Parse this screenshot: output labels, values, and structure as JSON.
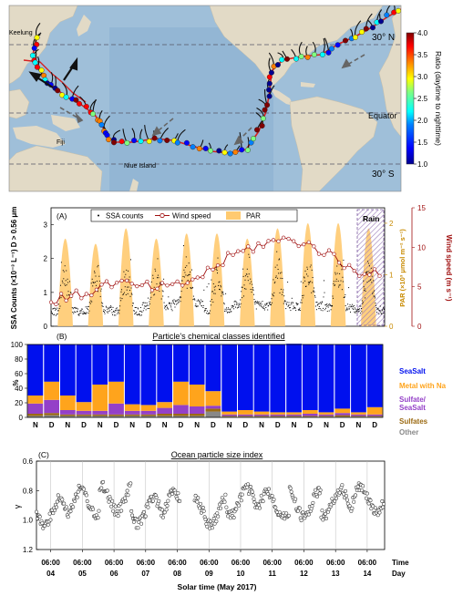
{
  "map": {
    "labels": {
      "keelung": "Keelung",
      "fiji": "Fiji",
      "niue": "Niue Island",
      "equator": "Equator",
      "lat_n": "30° N",
      "lat_s": "30° S"
    },
    "colorbar": {
      "title": "Ratio (daytime to nighttime)",
      "ticks": [
        "4.0",
        "3.5",
        "3.0",
        "2.5",
        "2.0",
        "1.5",
        "1.0"
      ],
      "range": [
        1.0,
        4.0
      ],
      "colors": [
        "#00008f",
        "#0000ff",
        "#0080ff",
        "#00ffff",
        "#80ff80",
        "#ffff00",
        "#ff8000",
        "#ff0000",
        "#800000"
      ]
    },
    "colors": {
      "land": "#e3dccb",
      "ocean": "#a9c7de",
      "deep_ocean": "#7ea7c9"
    }
  },
  "chart_data": [
    {
      "panel": "(A)",
      "type": "line",
      "legend": [
        "SSA counts",
        "Wind speed",
        "PAR"
      ],
      "ylabel_left": "SSA Counts (×10⁻³ L⁻¹) D > 0.56 μm",
      "ylabel_right1": "PAR (×10³ μmol m⁻² s⁻¹)",
      "ylabel_right2": "Wind speed (m s⁻¹)",
      "ylim_left": [
        0,
        3.5
      ],
      "ylim_par": [
        0,
        2.3
      ],
      "ylim_wind": [
        0,
        15
      ],
      "yticks_left": [
        "0",
        "1",
        "2",
        "3"
      ],
      "yticks_par": [
        "0",
        "1",
        "2"
      ],
      "yticks_wind": [
        "0",
        "5",
        "10",
        "15"
      ],
      "rain_label": "Rain",
      "par_peaks": [
        1.7,
        1.6,
        1.9,
        1.7,
        1.8,
        1.8,
        1.7,
        1.9,
        2.0,
        2.0,
        1.9
      ],
      "wind_daily": [
        3.2,
        4.0,
        5.5,
        5.0,
        4.8,
        6.5,
        9.0,
        10.5,
        11.0,
        9.5,
        7.0
      ],
      "ssa_night_baseline": [
        0.45,
        0.5,
        0.45,
        0.6,
        0.7,
        0.5,
        0.65,
        0.6,
        0.6,
        0.55,
        0.5
      ]
    },
    {
      "panel": "(B)",
      "type": "bar",
      "title": "Particle's chemical classes identified",
      "ylabel": "%",
      "ylim": [
        0,
        100
      ],
      "yticks": [
        "0",
        "20",
        "40",
        "60",
        "80",
        "100"
      ],
      "categories": [
        "N",
        "D",
        "N",
        "D",
        "N",
        "D",
        "N",
        "D",
        "N",
        "D",
        "N",
        "D",
        "N",
        "D",
        "N",
        "D",
        "N",
        "D",
        "N",
        "D",
        "N",
        "D"
      ],
      "series": [
        {
          "name": "Other",
          "color": "#888888",
          "values": [
            2,
            3,
            2,
            2,
            2,
            2,
            2,
            2,
            2,
            2,
            2,
            8,
            1,
            1,
            1,
            1,
            1,
            1,
            1,
            1,
            1,
            1
          ]
        },
        {
          "name": "Sulfates",
          "color": "#9b6a12",
          "values": [
            3,
            3,
            2,
            2,
            2,
            2,
            2,
            2,
            3,
            3,
            3,
            4,
            1,
            1,
            1,
            1,
            1,
            1,
            1,
            2,
            1,
            1
          ]
        },
        {
          "name": "Sulfate/SeaSalt",
          "color": "#9440c8",
          "values": [
            14,
            18,
            6,
            5,
            5,
            15,
            5,
            5,
            8,
            12,
            10,
            4,
            2,
            2,
            2,
            2,
            2,
            3,
            2,
            3,
            2,
            2
          ]
        },
        {
          "name": "Metal with Na",
          "color": "#ffa41c",
          "values": [
            11,
            25,
            20,
            12,
            36,
            30,
            9,
            8,
            8,
            32,
            30,
            20,
            4,
            6,
            4,
            3,
            3,
            5,
            3,
            6,
            3,
            10
          ]
        },
        {
          "name": "SeaSalt",
          "color": "#0010ee",
          "values": [
            70,
            51,
            70,
            79,
            55,
            51,
            82,
            83,
            79,
            51,
            55,
            64,
            92,
            90,
            92,
            93,
            94,
            90,
            93,
            88,
            93,
            86
          ]
        }
      ]
    },
    {
      "panel": "(C)",
      "type": "scatter",
      "title": "Ocean particle size index",
      "ylabel": "γ",
      "ylim": [
        1.2,
        0.6
      ],
      "yticks": [
        "0.6",
        "0.8",
        "1.0",
        "1.2"
      ]
    }
  ],
  "xaxis": {
    "time_label": "Time",
    "day_label": "Day",
    "xlabel": "Solar time (May 2017)",
    "time_ticks": [
      "06:00",
      "06:00",
      "06:00",
      "06:00",
      "06:00",
      "06:00",
      "06:00",
      "06:00",
      "06:00",
      "06:00",
      "06:00"
    ],
    "day_ticks": [
      "04",
      "05",
      "06",
      "07",
      "08",
      "09",
      "10",
      "11",
      "12",
      "13",
      "14"
    ]
  }
}
